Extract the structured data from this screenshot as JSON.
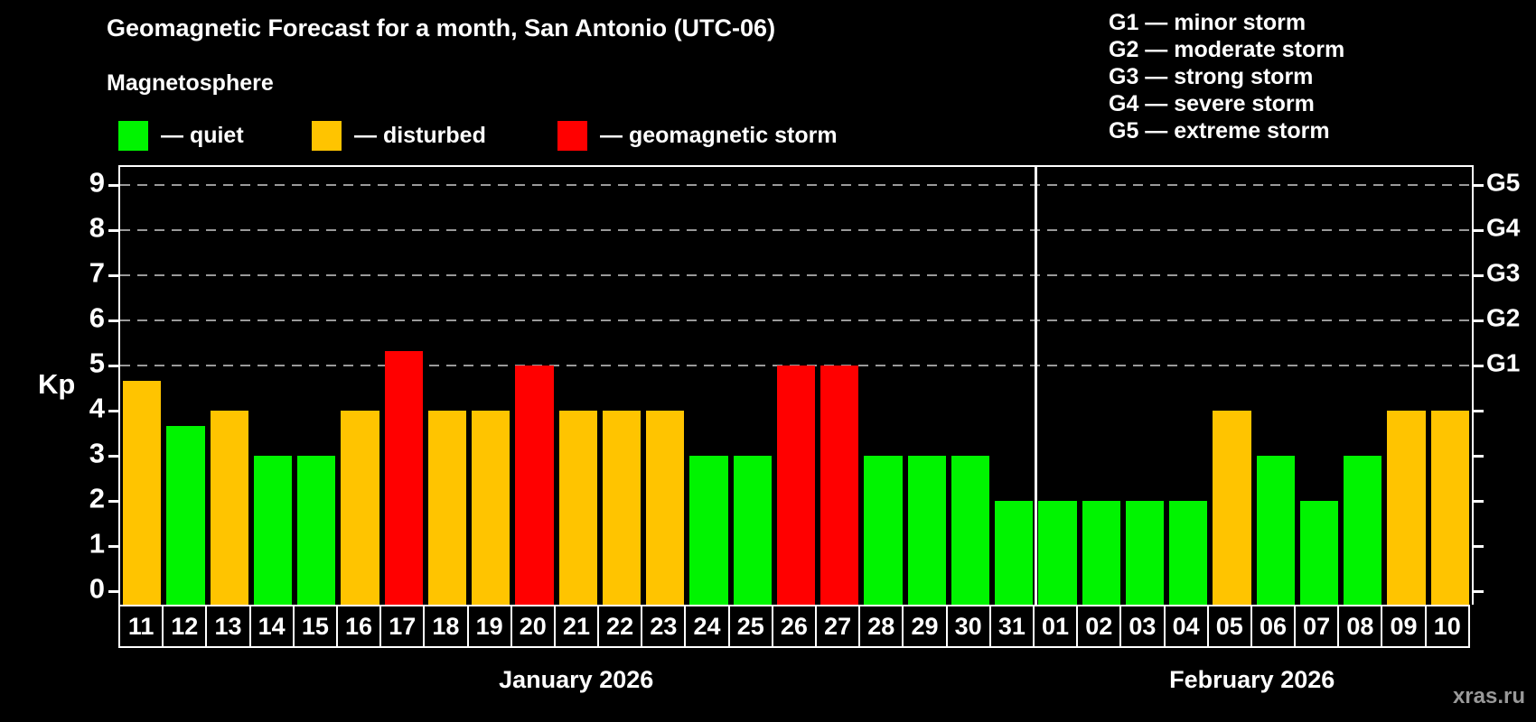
{
  "title": "Geomagnetic Forecast for a month, San Antonio (UTC-06)",
  "subtitle": "Magnetosphere",
  "legend": {
    "items": [
      {
        "state": "quiet",
        "label": "— quiet",
        "color": "#00f400"
      },
      {
        "state": "disturbed",
        "label": "— disturbed",
        "color": "#ffc400"
      },
      {
        "state": "storm",
        "label": "— geomagnetic storm",
        "color": "#ff0000"
      }
    ]
  },
  "storm_legend": {
    "lines": [
      "G1 — minor storm",
      "G2 — moderate storm",
      "G3 — strong storm",
      "G4 — severe storm",
      "G5 — extreme storm"
    ]
  },
  "chart_data": {
    "type": "bar",
    "title": "Geomagnetic Forecast for a month, San Antonio (UTC-06)",
    "ylabel": "Kp",
    "ylim": [
      0,
      9
    ],
    "y_ticks": [
      0,
      1,
      2,
      3,
      4,
      5,
      6,
      7,
      8,
      9
    ],
    "grid_levels": [
      5,
      6,
      7,
      8,
      9
    ],
    "grid_style": "dashed",
    "legend_position": "top",
    "right_axis_labels": [
      {
        "kp": 5,
        "label": "G1"
      },
      {
        "kp": 6,
        "label": "G2"
      },
      {
        "kp": 7,
        "label": "G3"
      },
      {
        "kp": 8,
        "label": "G4"
      },
      {
        "kp": 9,
        "label": "G5"
      }
    ],
    "categories": [
      "11",
      "12",
      "13",
      "14",
      "15",
      "16",
      "17",
      "18",
      "19",
      "20",
      "21",
      "22",
      "23",
      "24",
      "25",
      "26",
      "27",
      "28",
      "29",
      "30",
      "31",
      "01",
      "02",
      "03",
      "04",
      "05",
      "06",
      "07",
      "08",
      "09",
      "10"
    ],
    "values": [
      4.67,
      3.67,
      4,
      3,
      3,
      4,
      5.33,
      4,
      4,
      5,
      4,
      4,
      4,
      3,
      3,
      5,
      5,
      3,
      3,
      3,
      2,
      2,
      2,
      2,
      2,
      4,
      3,
      2,
      3,
      4,
      4
    ],
    "states": [
      "disturbed",
      "quiet",
      "disturbed",
      "quiet",
      "quiet",
      "disturbed",
      "storm",
      "disturbed",
      "disturbed",
      "storm",
      "disturbed",
      "disturbed",
      "disturbed",
      "quiet",
      "quiet",
      "storm",
      "storm",
      "quiet",
      "quiet",
      "quiet",
      "quiet",
      "quiet",
      "quiet",
      "quiet",
      "quiet",
      "disturbed",
      "quiet",
      "quiet",
      "quiet",
      "disturbed",
      "disturbed"
    ],
    "month_groups": [
      {
        "label": "January 2026",
        "start_index": 0,
        "count": 21
      },
      {
        "label": "February 2026",
        "start_index": 21,
        "count": 10
      }
    ]
  },
  "colors": {
    "quiet": "#00f400",
    "disturbed": "#ffc400",
    "storm": "#ff0000",
    "grid": "#9a9a9a",
    "axis": "#ffffff",
    "background": "#000000",
    "watermark": "#999999"
  },
  "watermark": "xras.ru"
}
